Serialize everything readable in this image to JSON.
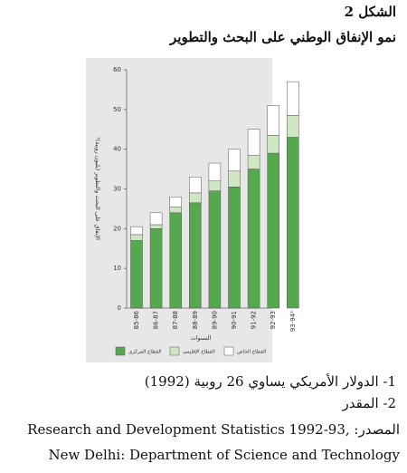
{
  "header": {
    "figure": "الشكل 2"
  },
  "chart_data": {
    "type": "stacked-bar",
    "title": "نمو الإنفاق الوطني على البحث والتطوير",
    "y_label": "الإنفاق على البحث والتطوير (بليون روبية)¹",
    "x_label": "السنوات",
    "categories": [
      "85-86",
      "86-87",
      "87-88",
      "88-89",
      "89-90",
      "90-91",
      "91-92",
      "92-93",
      "93-94²"
    ],
    "series": [
      {
        "name": "القطاع المركزي",
        "color": "#55a84e",
        "values": [
          17,
          20,
          24,
          26.5,
          29.5,
          30.5,
          35,
          39,
          43
        ]
      },
      {
        "name": "القطاع الإقليمي",
        "color": "#cfe8c3",
        "values": [
          1.5,
          1,
          1.5,
          2.5,
          2.5,
          4,
          3.5,
          4.5,
          5.5
        ]
      },
      {
        "name": "القطاع الخاص",
        "color": "#ffffff",
        "values": [
          2,
          3,
          2.5,
          4,
          4.5,
          5.5,
          6.5,
          7.5,
          8.5
        ]
      }
    ],
    "ylim": [
      0,
      60
    ],
    "yticks": [
      0,
      10,
      20,
      30,
      40,
      50,
      60
    ]
  },
  "notes": [
    "1- الدولار الأمريكي يساوي 26 روبية (1992)",
    "2- المقدر"
  ],
  "source": "المصدر: Research and Development Statistics 1992-93, New Delhi: Department of Science and Technology"
}
